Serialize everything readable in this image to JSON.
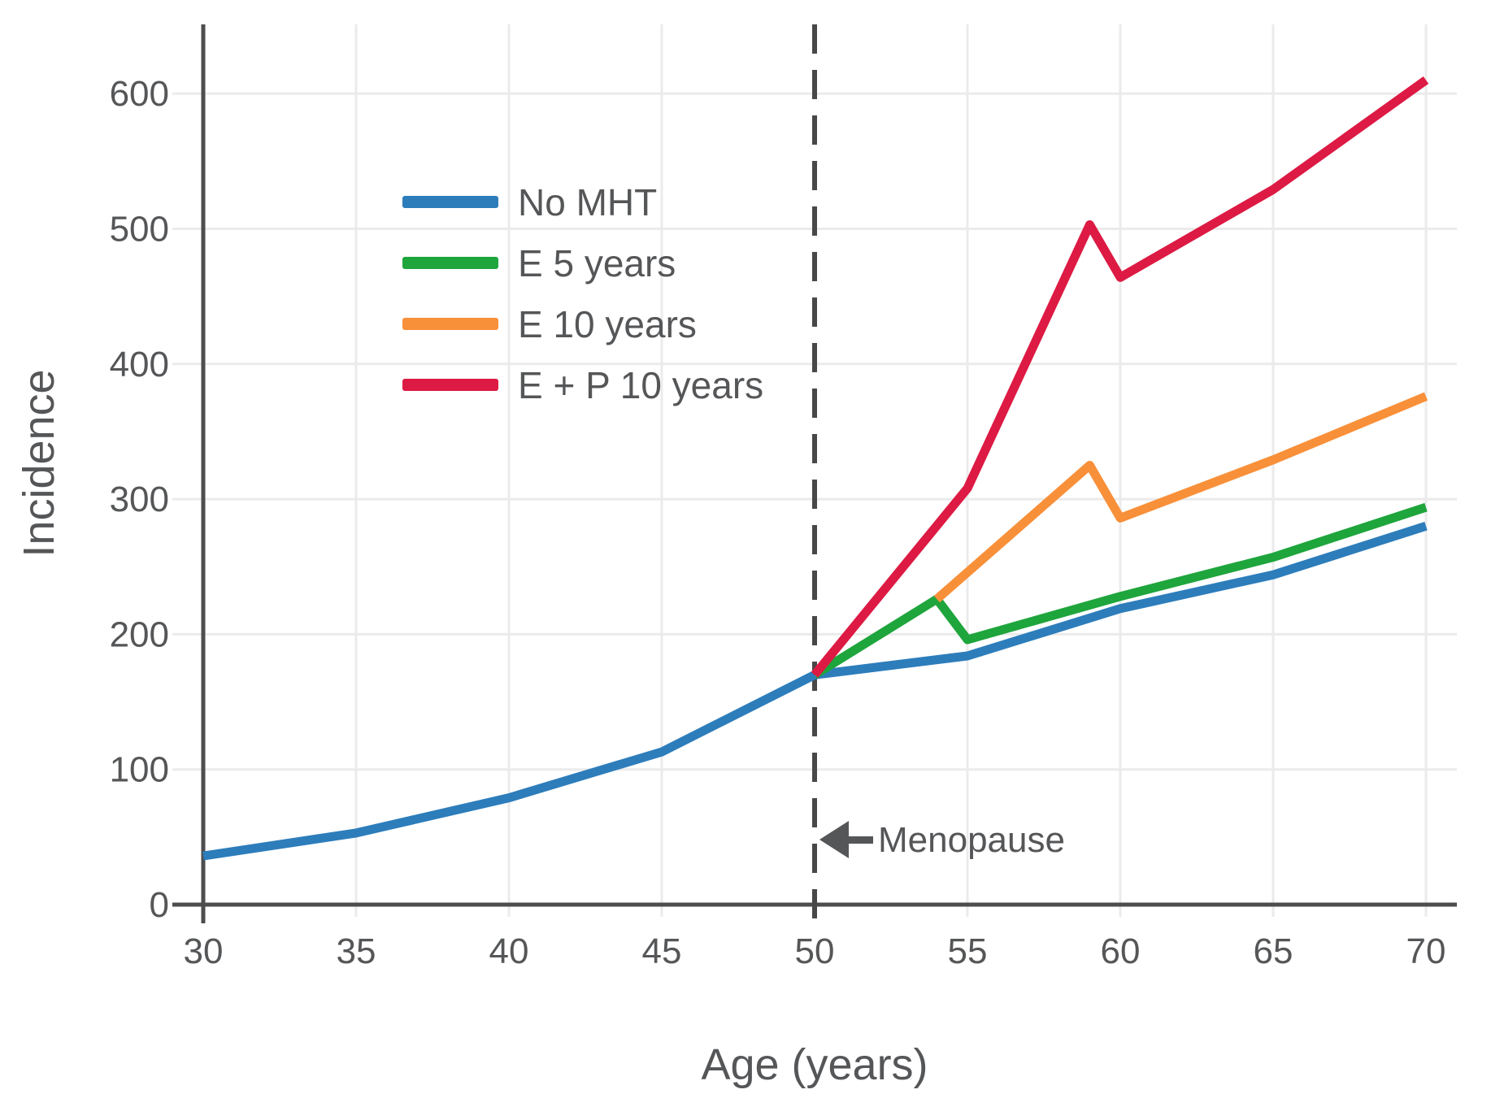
{
  "figure": {
    "background": "#ffffff",
    "axis_color": "#4d4d4d",
    "grid_color": "#ebebeb",
    "text_color": "#555658",
    "dashed_line_color": "#484848",
    "arrow_color": "#555658"
  },
  "chart_data": {
    "type": "line",
    "title": "",
    "xlabel": "Age (years)",
    "ylabel": "Incidence",
    "xlim": [
      30,
      70
    ],
    "ylim": [
      0,
      650
    ],
    "x_ticks": [
      "30",
      "35",
      "40",
      "45",
      "50",
      "55",
      "60",
      "65",
      "70"
    ],
    "y_ticks": [
      "0",
      "100",
      "200",
      "300",
      "400",
      "500",
      "600"
    ],
    "grid": true,
    "legend": {
      "position": "inside-top-left",
      "items": [
        "No MHT",
        "E 5 years",
        "E 10 years",
        "E + P 10 years"
      ]
    },
    "vline": {
      "x": 50,
      "style": "long-dash",
      "label": "Menopause"
    },
    "annotations": [
      {
        "text": "Menopause",
        "x": 50,
        "y": 51,
        "arrow": "left"
      }
    ],
    "series": [
      {
        "name": "No MHT",
        "color": "#2d7dbb",
        "points": [
          [
            30,
            36
          ],
          [
            35,
            53
          ],
          [
            40,
            79
          ],
          [
            45,
            113
          ],
          [
            50,
            170
          ],
          [
            55,
            184
          ],
          [
            60,
            219
          ],
          [
            65,
            244
          ],
          [
            70,
            280
          ]
        ]
      },
      {
        "name": "E 5 years",
        "color": "#1ea53c",
        "points": [
          [
            50,
            170
          ],
          [
            54,
            226
          ],
          [
            55,
            196
          ],
          [
            60,
            228
          ],
          [
            65,
            257
          ],
          [
            70,
            294
          ]
        ]
      },
      {
        "name": "E 10 years",
        "color": "#f8903a",
        "points": [
          [
            54,
            226
          ],
          [
            59,
            325
          ],
          [
            60,
            286
          ],
          [
            65,
            329
          ],
          [
            70,
            376
          ]
        ]
      },
      {
        "name": "E + P 10 years",
        "color": "#dd1a43",
        "points": [
          [
            50,
            170
          ],
          [
            55,
            308
          ],
          [
            59,
            503
          ],
          [
            60,
            464
          ],
          [
            65,
            529
          ],
          [
            70,
            610
          ]
        ]
      }
    ]
  }
}
